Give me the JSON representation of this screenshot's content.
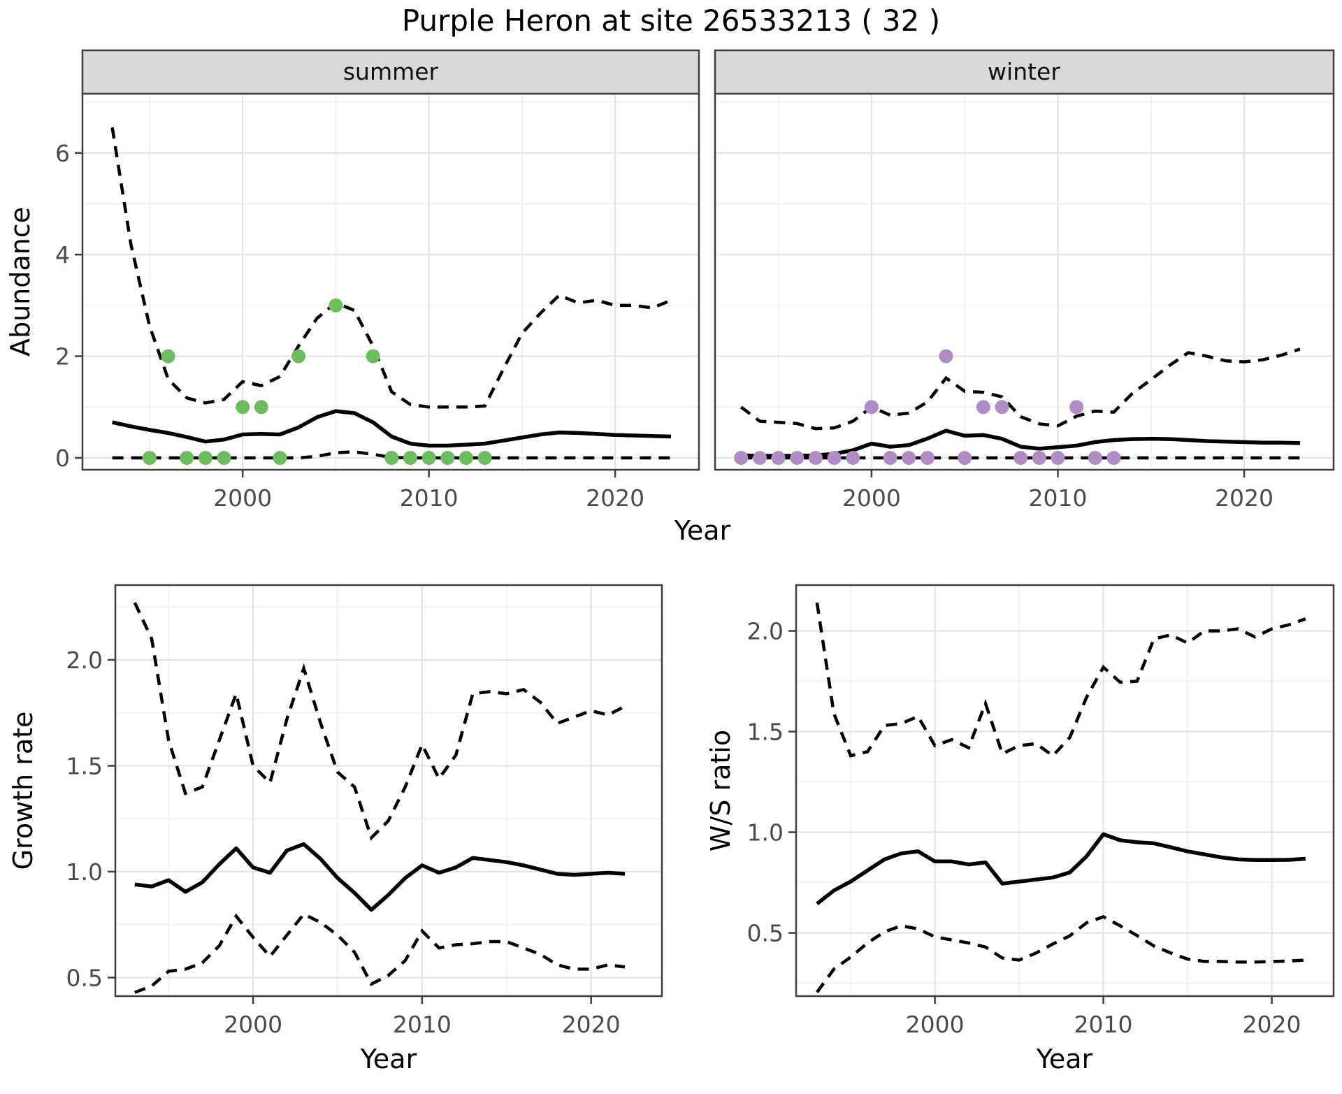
{
  "title": "Purple Heron at site 26533213 ( 32 )",
  "colors": {
    "summer_points": "#6abe5c",
    "winter_points": "#b28cc6",
    "line": "#000000",
    "strip_background": "#d9d9d9",
    "panel_border": "#3f3f3f",
    "grid_major": "#e3e3e3",
    "grid_minor": "#efefef",
    "tick_label": "#4a4a4a"
  },
  "chart_data": {
    "figure_title": "Purple Heron at site 26533213 ( 32 )",
    "type": "line",
    "shared_x_label": "Year",
    "facets": [
      {
        "id": "abundance-summer",
        "strip_label": "summer",
        "xlabel": "Year",
        "ylabel": "Abundance",
        "x_ticks": [
          "2000",
          "2010",
          "2020"
        ],
        "y_ticks": [
          "0",
          "2",
          "4",
          "6"
        ],
        "xlim": [
          1991.4,
          2024.5
        ],
        "ylim": [
          -0.234,
          7.166
        ],
        "grid": true,
        "years": [
          1993,
          1994,
          1995,
          1996,
          1997,
          1998,
          1999,
          2000,
          2001,
          2002,
          2003,
          2004,
          2005,
          2006,
          2007,
          2008,
          2009,
          2010,
          2011,
          2012,
          2013,
          2014,
          2015,
          2016,
          2017,
          2018,
          2019,
          2020,
          2021,
          2022,
          2023
        ],
        "mean": [
          0.7,
          0.62,
          0.55,
          0.49,
          0.41,
          0.32,
          0.36,
          0.46,
          0.47,
          0.46,
          0.6,
          0.8,
          0.92,
          0.88,
          0.7,
          0.42,
          0.28,
          0.24,
          0.24,
          0.26,
          0.28,
          0.34,
          0.4,
          0.46,
          0.5,
          0.49,
          0.47,
          0.45,
          0.44,
          0.43,
          0.42
        ],
        "upper": [
          6.5,
          4.2,
          2.6,
          1.55,
          1.18,
          1.08,
          1.15,
          1.5,
          1.42,
          1.6,
          2.2,
          2.75,
          3.05,
          2.9,
          2.2,
          1.3,
          1.05,
          1.0,
          1.0,
          1.0,
          1.02,
          1.75,
          2.45,
          2.85,
          3.2,
          3.05,
          3.1,
          3.0,
          3.0,
          2.95,
          3.1
        ],
        "lower": [
          0,
          0,
          0,
          0,
          0,
          0,
          0,
          0,
          0,
          0,
          0,
          0.03,
          0.1,
          0.12,
          0.07,
          0.01,
          0,
          0,
          0,
          0,
          0,
          0,
          0,
          0,
          0,
          0,
          0,
          0,
          0,
          0,
          0
        ],
        "observations": [
          [
            1995,
            0
          ],
          [
            1996,
            2
          ],
          [
            1997,
            0
          ],
          [
            1998,
            0
          ],
          [
            1999,
            0
          ],
          [
            2000,
            1
          ],
          [
            2001,
            1
          ],
          [
            2002,
            0
          ],
          [
            2003,
            2
          ],
          [
            2005,
            3
          ],
          [
            2007,
            2
          ],
          [
            2008,
            0
          ],
          [
            2009,
            0
          ],
          [
            2010,
            0
          ],
          [
            2011,
            0
          ],
          [
            2012,
            0
          ],
          [
            2013,
            0
          ]
        ],
        "point_color": "#6abe5c"
      },
      {
        "id": "abundance-winter",
        "strip_label": "winter",
        "xlabel": "Year",
        "ylabel": "Abundance",
        "x_ticks": [
          "2000",
          "2010",
          "2020"
        ],
        "y_ticks": [
          "0",
          "2",
          "4",
          "6"
        ],
        "xlim": [
          1991.6,
          2024.8
        ],
        "ylim": [
          -0.234,
          7.166
        ],
        "grid": true,
        "years": [
          1993,
          1994,
          1995,
          1996,
          1997,
          1998,
          1999,
          2000,
          2001,
          2002,
          2003,
          2004,
          2005,
          2006,
          2007,
          2008,
          2009,
          2010,
          2011,
          2012,
          2013,
          2014,
          2015,
          2016,
          2017,
          2018,
          2019,
          2020,
          2021,
          2022,
          2023
        ],
        "mean": [
          0.05,
          0.04,
          0.04,
          0.04,
          0.05,
          0.08,
          0.15,
          0.28,
          0.22,
          0.25,
          0.38,
          0.535,
          0.435,
          0.45,
          0.375,
          0.22,
          0.18,
          0.21,
          0.24,
          0.31,
          0.35,
          0.37,
          0.375,
          0.37,
          0.35,
          0.33,
          0.32,
          0.31,
          0.3,
          0.3,
          0.29
        ],
        "upper": [
          1.0,
          0.72,
          0.7,
          0.675,
          0.575,
          0.59,
          0.72,
          1.0,
          0.84,
          0.88,
          1.1,
          1.57,
          1.31,
          1.29,
          1.2,
          0.81,
          0.67,
          0.63,
          0.82,
          0.92,
          0.9,
          1.27,
          1.54,
          1.82,
          2.07,
          2.0,
          1.91,
          1.89,
          1.93,
          2.02,
          2.14
        ],
        "lower": [
          0,
          0,
          0,
          0,
          0,
          0,
          0,
          0,
          0,
          0,
          0,
          0,
          0,
          0,
          0,
          0,
          0,
          0,
          0,
          0,
          0,
          0,
          0,
          0,
          0,
          0,
          0,
          0,
          0,
          0,
          0
        ],
        "observations": [
          [
            1993,
            0
          ],
          [
            1994,
            0
          ],
          [
            1995,
            0
          ],
          [
            1996,
            0
          ],
          [
            1997,
            0
          ],
          [
            1998,
            0
          ],
          [
            1999,
            0
          ],
          [
            2000,
            1
          ],
          [
            2001,
            0
          ],
          [
            2002,
            0
          ],
          [
            2003,
            0
          ],
          [
            2004,
            2
          ],
          [
            2005,
            0
          ],
          [
            2006,
            1
          ],
          [
            2007,
            1
          ],
          [
            2008,
            0
          ],
          [
            2009,
            0
          ],
          [
            2010,
            0
          ],
          [
            2011,
            1
          ],
          [
            2012,
            0
          ],
          [
            2013,
            0
          ]
        ],
        "point_color": "#b28cc6"
      },
      {
        "id": "growth-rate",
        "strip_label": "",
        "xlabel": "Year",
        "ylabel": "Growth rate",
        "x_ticks": [
          "2000",
          "2010",
          "2020"
        ],
        "y_ticks": [
          "0.5",
          "1.0",
          "1.5",
          "2.0"
        ],
        "xlim": [
          1991.85,
          2024.19
        ],
        "ylim": [
          0.4125,
          2.353
        ],
        "grid": true,
        "years": [
          1993,
          1994,
          1995,
          1996,
          1997,
          1998,
          1999,
          2000,
          2001,
          2002,
          2003,
          2004,
          2005,
          2006,
          2007,
          2008,
          2009,
          2010,
          2011,
          2012,
          2013,
          2014,
          2015,
          2016,
          2017,
          2018,
          2019,
          2020,
          2021,
          2022
        ],
        "mean": [
          0.94,
          0.93,
          0.96,
          0.905,
          0.95,
          1.035,
          1.11,
          1.02,
          0.995,
          1.1,
          1.13,
          1.06,
          0.97,
          0.9,
          0.82,
          0.89,
          0.97,
          1.03,
          0.995,
          1.02,
          1.065,
          1.055,
          1.045,
          1.03,
          1.01,
          0.99,
          0.985,
          0.99,
          0.995,
          0.99
        ],
        "upper": [
          2.27,
          2.1,
          1.62,
          1.37,
          1.4,
          1.62,
          1.84,
          1.5,
          1.42,
          1.72,
          1.96,
          1.7,
          1.47,
          1.4,
          1.16,
          1.24,
          1.4,
          1.6,
          1.44,
          1.55,
          1.84,
          1.85,
          1.84,
          1.86,
          1.8,
          1.7,
          1.73,
          1.76,
          1.74,
          1.78
        ],
        "lower": [
          0.43,
          0.46,
          0.53,
          0.54,
          0.57,
          0.65,
          0.79,
          0.69,
          0.6,
          0.7,
          0.8,
          0.76,
          0.7,
          0.62,
          0.47,
          0.51,
          0.58,
          0.72,
          0.64,
          0.655,
          0.66,
          0.67,
          0.67,
          0.64,
          0.61,
          0.56,
          0.54,
          0.54,
          0.56,
          0.55
        ],
        "observations": [],
        "point_color": ""
      },
      {
        "id": "ws-ratio",
        "strip_label": "",
        "xlabel": "Year",
        "ylabel": "W/S ratio",
        "x_ticks": [
          "2000",
          "2010",
          "2020"
        ],
        "y_ticks": [
          "0.5",
          "1.0",
          "1.5",
          "2.0"
        ],
        "xlim": [
          1991.76,
          2023.67
        ],
        "ylim": [
          0.1858,
          2.2275
        ],
        "grid": true,
        "years": [
          1993,
          1994,
          1995,
          1996,
          1997,
          1998,
          1999,
          2000,
          2001,
          2002,
          2003,
          2004,
          2005,
          2006,
          2007,
          2008,
          2009,
          2010,
          2011,
          2012,
          2013,
          2014,
          2015,
          2016,
          2017,
          2018,
          2019,
          2020,
          2021,
          2022
        ],
        "mean": [
          0.645,
          0.71,
          0.755,
          0.81,
          0.865,
          0.895,
          0.905,
          0.855,
          0.855,
          0.84,
          0.85,
          0.745,
          0.755,
          0.765,
          0.775,
          0.8,
          0.88,
          0.99,
          0.96,
          0.95,
          0.945,
          0.925,
          0.905,
          0.89,
          0.875,
          0.865,
          0.862,
          0.862,
          0.863,
          0.868
        ],
        "upper": [
          2.14,
          1.59,
          1.38,
          1.4,
          1.53,
          1.54,
          1.575,
          1.43,
          1.46,
          1.42,
          1.64,
          1.39,
          1.43,
          1.44,
          1.38,
          1.47,
          1.67,
          1.82,
          1.745,
          1.75,
          1.96,
          1.98,
          1.94,
          2.0,
          2.0,
          2.01,
          1.97,
          2.01,
          2.03,
          2.06
        ],
        "lower": [
          0.205,
          0.32,
          0.38,
          0.45,
          0.505,
          0.535,
          0.52,
          0.48,
          0.465,
          0.45,
          0.43,
          0.375,
          0.365,
          0.4,
          0.445,
          0.485,
          0.55,
          0.58,
          0.535,
          0.487,
          0.435,
          0.4,
          0.37,
          0.358,
          0.358,
          0.355,
          0.355,
          0.358,
          0.36,
          0.365
        ],
        "observations": [],
        "point_color": ""
      }
    ],
    "line_styles": {
      "mean": "solid black",
      "upper": "dashed black (confidence band)",
      "lower": "dashed black (confidence band)"
    }
  }
}
